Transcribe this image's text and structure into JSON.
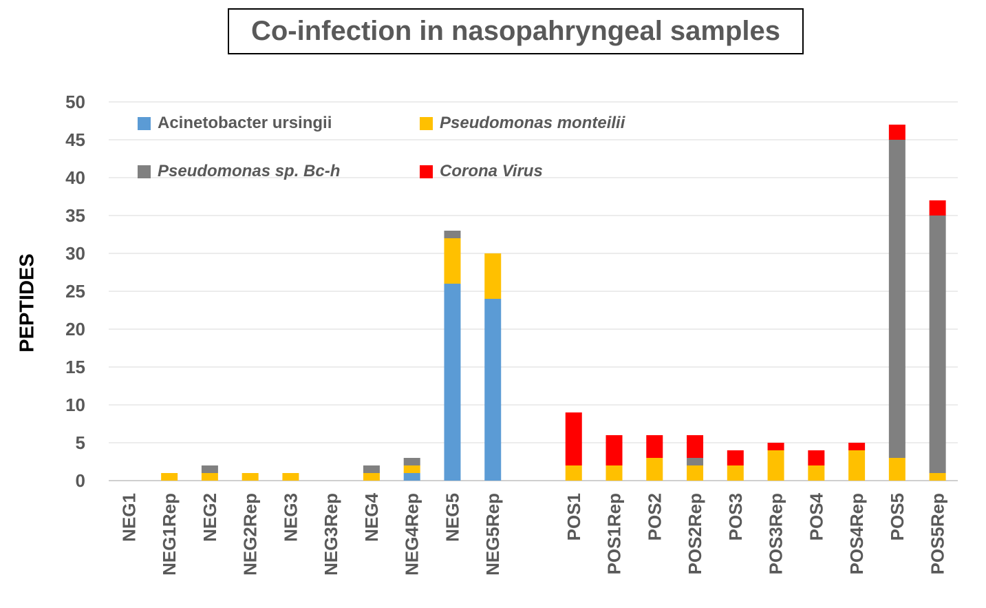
{
  "chart_data": {
    "type": "bar",
    "stacked": true,
    "title": "Co-infection in nasopahryngeal samples",
    "xlabel": "",
    "ylabel": "PEPTIDES",
    "ylim": [
      0,
      50
    ],
    "yticks": [
      0,
      5,
      10,
      15,
      20,
      25,
      30,
      35,
      40,
      45,
      50
    ],
    "grid": true,
    "legend_position": "top-left",
    "categories": [
      "NEG1",
      "NEG1Rep",
      "NEG2",
      "NEG2Rep",
      "NEG3",
      "NEG3Rep",
      "NEG4",
      "NEG4Rep",
      "NEG5",
      "NEG5Rep",
      "",
      "POS1",
      "POS1Rep",
      "POS2",
      "POS2Rep",
      "POS3",
      "POS3Rep",
      "POS4",
      "POS4Rep",
      "POS5",
      "POS5Rep"
    ],
    "series": [
      {
        "name": "Acinetobacter ursingii",
        "color": "#5B9BD5",
        "italic": false,
        "values": [
          0,
          0,
          0,
          0,
          0,
          0,
          0,
          1,
          26,
          24,
          0,
          0,
          0,
          0,
          0,
          0,
          0,
          0,
          0,
          0,
          0
        ]
      },
      {
        "name": "Pseudomonas monteilii",
        "color": "#FFC000",
        "italic": true,
        "values": [
          0,
          1,
          1,
          1,
          1,
          0,
          1,
          1,
          6,
          6,
          0,
          2,
          2,
          3,
          2,
          2,
          4,
          2,
          4,
          3,
          1
        ]
      },
      {
        "name": "Pseudomonas sp. Bc-h",
        "color": "#808080",
        "italic": true,
        "values": [
          0,
          0,
          1,
          0,
          0,
          0,
          1,
          1,
          1,
          0,
          0,
          0,
          0,
          0,
          1,
          0,
          0,
          0,
          0,
          42,
          34
        ]
      },
      {
        "name": "Corona Virus",
        "color": "#FF0000",
        "italic": true,
        "values": [
          0,
          0,
          0,
          0,
          0,
          0,
          0,
          0,
          0,
          0,
          0,
          7,
          4,
          3,
          3,
          2,
          1,
          2,
          1,
          2,
          2
        ]
      }
    ]
  }
}
